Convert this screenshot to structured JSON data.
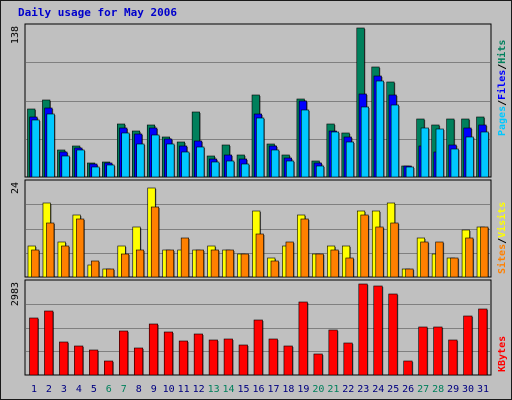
{
  "title": "Daily usage for May 2006",
  "days": [
    "1",
    "2",
    "3",
    "4",
    "5",
    "6",
    "7",
    "8",
    "9",
    "10",
    "11",
    "12",
    "13",
    "14",
    "15",
    "16",
    "17",
    "18",
    "19",
    "20",
    "21",
    "22",
    "23",
    "24",
    "25",
    "26",
    "27",
    "28",
    "29",
    "30",
    "31"
  ],
  "weekend_days": [
    6,
    7,
    13,
    14,
    20,
    21,
    27,
    28
  ],
  "colors": {
    "hits": "#00805c",
    "files": "#0000ff",
    "pages": "#00c8ff",
    "visits": "#ffff00",
    "sites": "#ff8000",
    "kbytes": "#ff0000",
    "weekend_label": "#00805c",
    "weekday_label": "#000080",
    "title": "#0000cc"
  },
  "labels": {
    "pages": "Pages",
    "files": "Files",
    "hits": "Hits",
    "sites": "Sites",
    "visits": "Visits",
    "kbytes": "KBytes",
    "separator": "/"
  },
  "chart_data": [
    {
      "type": "bar",
      "panel": "hits-files-pages",
      "y_max_label": "138",
      "ylim": [
        0,
        138
      ],
      "categories": [
        "1",
        "2",
        "3",
        "4",
        "5",
        "6",
        "7",
        "8",
        "9",
        "10",
        "11",
        "12",
        "13",
        "14",
        "15",
        "16",
        "17",
        "18",
        "19",
        "20",
        "21",
        "22",
        "23",
        "24",
        "25",
        "26",
        "27",
        "28",
        "29",
        "30",
        "31"
      ],
      "series": [
        {
          "name": "Hits",
          "values": [
            63,
            71,
            25,
            29,
            13,
            14,
            49,
            43,
            48,
            37,
            32,
            60,
            19,
            30,
            20,
            76,
            31,
            20,
            72,
            15,
            49,
            41,
            138,
            102,
            88,
            10,
            54,
            48,
            54,
            54,
            56
          ]
        },
        {
          "name": "Files",
          "values": [
            56,
            64,
            23,
            27,
            12,
            13,
            45,
            40,
            45,
            35,
            29,
            33,
            17,
            20,
            17,
            58,
            29,
            18,
            70,
            13,
            43,
            37,
            77,
            94,
            76,
            10,
            29,
            23,
            30,
            45,
            48
          ]
        },
        {
          "name": "Pages",
          "values": [
            53,
            58,
            19,
            25,
            9,
            11,
            41,
            31,
            39,
            31,
            23,
            28,
            14,
            15,
            12,
            55,
            25,
            15,
            62,
            10,
            42,
            32,
            65,
            89,
            67,
            9,
            45,
            44,
            26,
            37,
            42
          ]
        }
      ]
    },
    {
      "type": "bar",
      "panel": "visits-sites",
      "y_max_label": "24",
      "ylim": [
        0,
        24
      ],
      "categories": [
        "1",
        "2",
        "3",
        "4",
        "5",
        "6",
        "7",
        "8",
        "9",
        "10",
        "11",
        "12",
        "13",
        "14",
        "15",
        "16",
        "17",
        "18",
        "19",
        "20",
        "21",
        "22",
        "23",
        "24",
        "25",
        "26",
        "27",
        "28",
        "29",
        "30",
        "31"
      ],
      "series": [
        {
          "name": "Visits",
          "values": [
            8,
            19,
            9,
            16,
            3,
            2,
            8,
            13,
            23,
            7,
            7,
            7,
            8,
            7,
            6,
            17,
            5,
            8,
            16,
            6,
            8,
            8,
            17,
            17,
            19,
            2,
            10,
            6,
            5,
            12,
            13
          ]
        },
        {
          "name": "Sites",
          "values": [
            7,
            14,
            8,
            15,
            4,
            2,
            6,
            7,
            18,
            7,
            10,
            7,
            7,
            7,
            6,
            11,
            4,
            9,
            15,
            6,
            7,
            5,
            16,
            13,
            14,
            2,
            9,
            9,
            5,
            10,
            13
          ]
        }
      ]
    },
    {
      "type": "bar",
      "panel": "kbytes",
      "y_max_label": "2983",
      "ylim": [
        0,
        2983
      ],
      "categories": [
        "1",
        "2",
        "3",
        "4",
        "5",
        "6",
        "7",
        "8",
        "9",
        "10",
        "11",
        "12",
        "13",
        "14",
        "15",
        "16",
        "17",
        "18",
        "19",
        "20",
        "21",
        "22",
        "23",
        "24",
        "25",
        "26",
        "27",
        "28",
        "29",
        "30",
        "31"
      ],
      "series": [
        {
          "name": "KBytes",
          "values": [
            1880,
            2093,
            1079,
            955,
            827,
            471,
            1435,
            873,
            1664,
            1402,
            1130,
            1339,
            1159,
            1180,
            987,
            1815,
            1190,
            937,
            2405,
            673,
            1486,
            1048,
            2983,
            2914,
            2647,
            464,
            1560,
            1560,
            1137,
            1919,
            2172
          ]
        }
      ]
    }
  ]
}
